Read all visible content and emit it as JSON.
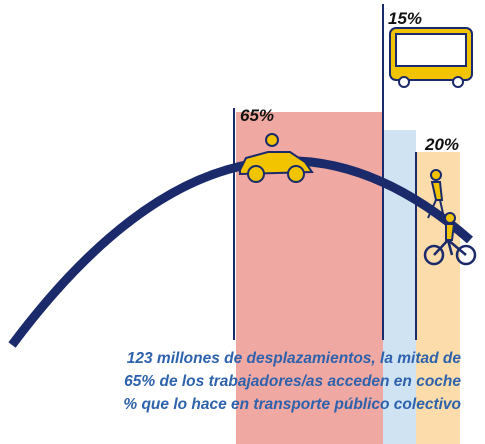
{
  "labels": {
    "car": "65%",
    "bus": "15%",
    "walk_bike": "20%"
  },
  "caption": [
    "123 millones de desplazamientos, la mitad de",
    "65% de los trabajadores/as acceden en coche",
    "% que lo hace en transporte público colectivo"
  ]
}
